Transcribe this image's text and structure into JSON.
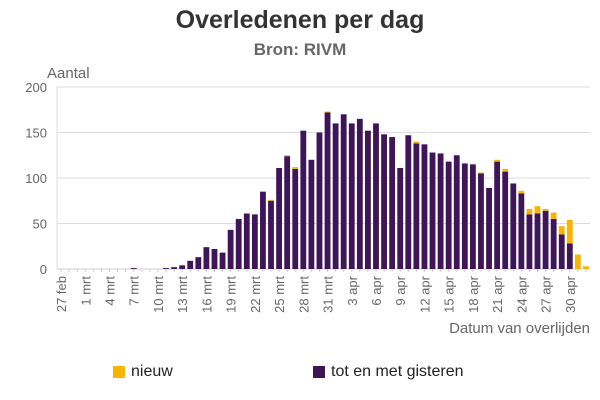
{
  "chart_data": {
    "type": "bar",
    "stacked": true,
    "title": "Overledenen per dag",
    "subtitle": "Bron: RIVM",
    "ylabel": "Aantal",
    "xlabel": "Datum van overlijden",
    "ylim": [
      0,
      200
    ],
    "yticks": [
      0,
      50,
      100,
      150,
      200
    ],
    "grid": true,
    "legend_position": "bottom",
    "categories": [
      "27 feb",
      "28 feb",
      "29 feb",
      "1 mrt",
      "2 mrt",
      "3 mrt",
      "4 mrt",
      "5 mrt",
      "6 mrt",
      "7 mrt",
      "8 mrt",
      "9 mrt",
      "10 mrt",
      "11 mrt",
      "12 mrt",
      "13 mrt",
      "14 mrt",
      "15 mrt",
      "16 mrt",
      "17 mrt",
      "18 mrt",
      "19 mrt",
      "20 mrt",
      "21 mrt",
      "22 mrt",
      "23 mrt",
      "24 mrt",
      "25 mrt",
      "26 mrt",
      "27 mrt",
      "28 mrt",
      "29 mrt",
      "30 mrt",
      "31 mrt",
      "1 apr",
      "2 apr",
      "3 apr",
      "4 apr",
      "5 apr",
      "6 apr",
      "7 apr",
      "8 apr",
      "9 apr",
      "10 apr",
      "11 apr",
      "12 apr",
      "13 apr",
      "14 apr",
      "15 apr",
      "16 apr",
      "17 apr",
      "18 apr",
      "19 apr",
      "20 apr",
      "21 apr",
      "22 apr",
      "23 apr",
      "24 apr",
      "25 apr",
      "26 apr",
      "27 apr",
      "28 apr",
      "29 apr",
      "30 apr",
      "1 mei",
      "2 mei"
    ],
    "tick_labels": [
      "27 feb",
      "1 mrt",
      "4 mrt",
      "7 mrt",
      "10 mrt",
      "13 mrt",
      "16 mrt",
      "19 mrt",
      "22 mrt",
      "25 mrt",
      "28 mrt",
      "31 mrt",
      "3 apr",
      "6 apr",
      "9 apr",
      "12 apr",
      "15 apr",
      "18 apr",
      "21 apr",
      "24 apr",
      "27 apr",
      "30 apr"
    ],
    "series": [
      {
        "name": "tot en met gisteren",
        "color": "#3f1559",
        "values": [
          0,
          0,
          0,
          0,
          0,
          0,
          0,
          0,
          0,
          1,
          0,
          0,
          0,
          1,
          2,
          4,
          9,
          13,
          24,
          22,
          18,
          43,
          55,
          61,
          60,
          85,
          75,
          111,
          124,
          110,
          152,
          120,
          150,
          172,
          160,
          170,
          160,
          165,
          152,
          160,
          148,
          145,
          111,
          147,
          138,
          137,
          128,
          127,
          118,
          125,
          116,
          115,
          105,
          89,
          118,
          107,
          94,
          83,
          60,
          61,
          64,
          55,
          38,
          28,
          0,
          0
        ]
      },
      {
        "name": "nieuw",
        "color": "#f7b400",
        "values": [
          0,
          0,
          0,
          0,
          0,
          0,
          0,
          0,
          0,
          0,
          0,
          0,
          0,
          0,
          0,
          0,
          0,
          0,
          0,
          0,
          0,
          0,
          0,
          0,
          0,
          0,
          1,
          0,
          1,
          2,
          0,
          0,
          0,
          1,
          0,
          0,
          0,
          0,
          0,
          0,
          0,
          0,
          0,
          0,
          2,
          0,
          0,
          0,
          0,
          0,
          0,
          0,
          1,
          0,
          2,
          3,
          0,
          3,
          6,
          8,
          2,
          7,
          9,
          26,
          16,
          3
        ]
      }
    ]
  },
  "legend": {
    "items": [
      {
        "label": "nieuw",
        "color": "#f7b400"
      },
      {
        "label": "tot en met gisteren",
        "color": "#3f1559"
      }
    ]
  }
}
